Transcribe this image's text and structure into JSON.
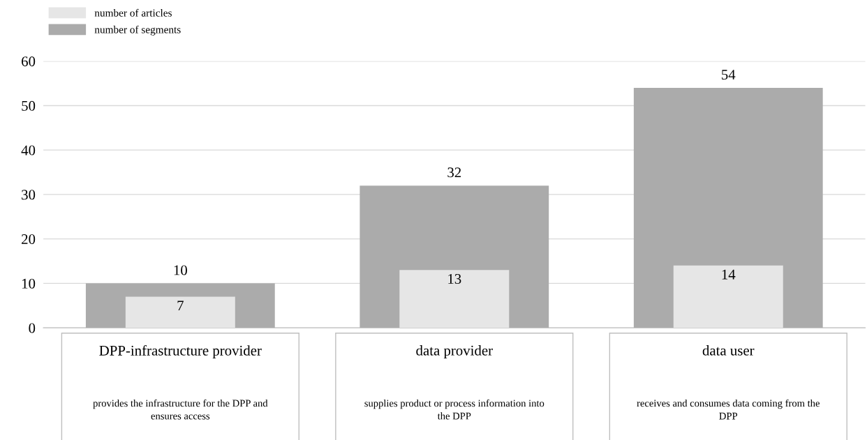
{
  "chart_data": {
    "type": "bar",
    "categories": [
      "DPP-infrastructure provider",
      "data provider",
      "data user"
    ],
    "series": [
      {
        "name": "number of articles",
        "color": "#e6e6e6",
        "values": [
          7,
          13,
          14
        ]
      },
      {
        "name": "number of segments",
        "color": "#ababab",
        "values": [
          10,
          32,
          54
        ]
      }
    ],
    "annotations": [
      "provides the infrastructure for the DPP and ensures access",
      "supplies product or process information into the DPP",
      "receives and consumes data coming from the DPP"
    ],
    "ylim": [
      0,
      60
    ],
    "yticks": [
      0,
      10,
      20,
      30,
      40,
      50,
      60
    ],
    "grid": "y",
    "legend": "top left",
    "data_labels": true
  }
}
